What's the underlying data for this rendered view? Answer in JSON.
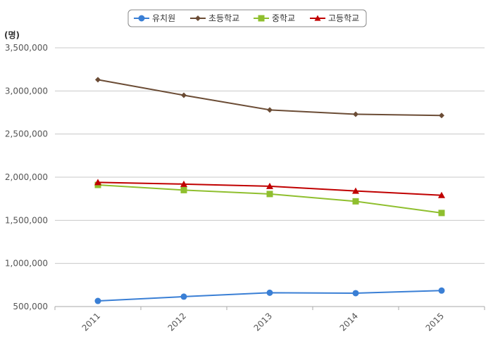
{
  "chart_data": {
    "type": "line",
    "title": "",
    "xlabel": "",
    "ylabel": "(명)",
    "categories": [
      "2011",
      "2012",
      "2013",
      "2014",
      "2015"
    ],
    "ylim": [
      500000,
      3500000
    ],
    "yticks": [
      500000,
      1000000,
      1500000,
      2000000,
      2500000,
      3000000,
      3500000
    ],
    "ytick_labels": [
      "500,000",
      "1,000,000",
      "1,500,000",
      "2,000,000",
      "2,500,000",
      "3,000,000",
      "3,500,000"
    ],
    "grid": true,
    "legend_position": "top-center",
    "series": [
      {
        "name": "유치원",
        "color": "#3a7fd5",
        "marker": "circle",
        "values": [
          565000,
          615000,
          660000,
          655000,
          685000
        ]
      },
      {
        "name": "초등학교",
        "color": "#6b4c35",
        "marker": "diamond",
        "values": [
          3130000,
          2950000,
          2780000,
          2730000,
          2715000
        ]
      },
      {
        "name": "중학교",
        "color": "#8fbf2e",
        "marker": "square",
        "values": [
          1910000,
          1850000,
          1805000,
          1720000,
          1585000
        ]
      },
      {
        "name": "고등학교",
        "color": "#c00000",
        "marker": "triangle",
        "values": [
          1940000,
          1920000,
          1895000,
          1840000,
          1790000
        ]
      }
    ]
  }
}
